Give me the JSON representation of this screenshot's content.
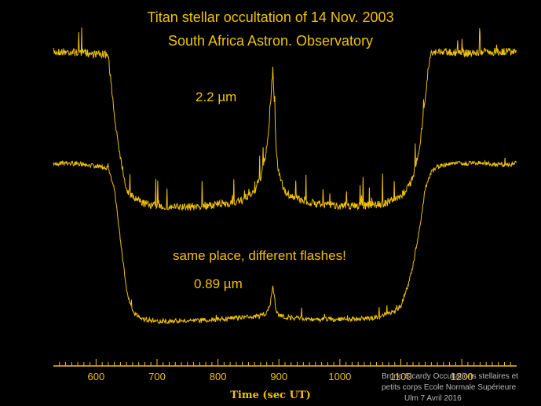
{
  "title_line1": "Titan stellar occultation of 14 Nov. 2003",
  "title_line2": "South Africa Astron. Observatory",
  "annotations": {
    "upper_curve": "2.2 µm",
    "middle": "same place, different flashes!",
    "lower_curve": "0.89 µm"
  },
  "footer": {
    "line1": "Bruno Sicardy   Occultations stellaires et",
    "line2": "petits corps   Ecole Normale Supérieure",
    "line3": "Ulm   7 Avril 2016"
  },
  "colors": {
    "trace": "#f2c200",
    "background": "#000000"
  },
  "chart_data": {
    "type": "line",
    "xlabel": "Time (sec UT)",
    "ylabel": "",
    "xlim": [
      530,
      1290
    ],
    "x_ticks": [
      600,
      700,
      800,
      900,
      1000,
      1100,
      1200
    ],
    "x_ticklabels": [
      "600",
      "700",
      "800",
      "900",
      "1000",
      "1100",
      "1200"
    ],
    "series": [
      {
        "name": "2.2 µm",
        "x": [
          530,
          560,
          590,
          620,
          630,
          640,
          650,
          660,
          680,
          700,
          720,
          750,
          780,
          810,
          840,
          860,
          870,
          880,
          885,
          890,
          895,
          900,
          910,
          930,
          960,
          1000,
          1040,
          1070,
          1100,
          1120,
          1130,
          1140,
          1145,
          1150,
          1160,
          1180,
          1210,
          1240,
          1270,
          1290
        ],
        "y": [
          1.0,
          1.0,
          0.99,
          0.98,
          0.6,
          0.35,
          0.15,
          0.1,
          0.06,
          0.05,
          0.04,
          0.04,
          0.05,
          0.06,
          0.08,
          0.14,
          0.22,
          0.4,
          0.6,
          0.9,
          0.42,
          0.24,
          0.13,
          0.09,
          0.06,
          0.05,
          0.05,
          0.06,
          0.1,
          0.22,
          0.4,
          0.7,
          0.9,
          1.0,
          1.0,
          1.0,
          0.99,
          1.0,
          1.0,
          1.0
        ]
      },
      {
        "name": "0.89 µm",
        "x": [
          530,
          560,
          590,
          620,
          630,
          640,
          650,
          660,
          680,
          700,
          730,
          760,
          800,
          840,
          870,
          880,
          885,
          890,
          895,
          900,
          920,
          960,
          1000,
          1040,
          1070,
          1090,
          1100,
          1110,
          1120,
          1130,
          1140,
          1150,
          1160,
          1180,
          1210,
          1240,
          1270,
          1290
        ],
        "y": [
          1.0,
          1.0,
          0.99,
          0.97,
          0.85,
          0.55,
          0.25,
          0.12,
          0.08,
          0.07,
          0.07,
          0.07,
          0.08,
          0.09,
          0.1,
          0.12,
          0.16,
          0.28,
          0.14,
          0.1,
          0.09,
          0.08,
          0.08,
          0.08,
          0.1,
          0.13,
          0.16,
          0.26,
          0.4,
          0.6,
          0.85,
          0.95,
          0.98,
          1.0,
          1.0,
          1.0,
          0.99,
          1.0
        ]
      }
    ]
  }
}
